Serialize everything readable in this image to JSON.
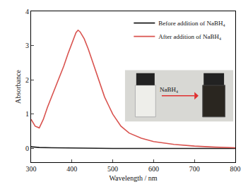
{
  "chart_data": {
    "type": "line",
    "x_label": "Wavelength / nm",
    "y_label": "Absorbance",
    "xlim": [
      300,
      800
    ],
    "xticks": [
      300,
      400,
      500,
      600,
      700,
      800
    ],
    "ylim": [
      -0.4,
      4
    ],
    "yticks": [
      0,
      1,
      2,
      3,
      4
    ],
    "grid": false,
    "legend": "upper right",
    "annotations": [
      {
        "text": "NaBH₄"
      }
    ],
    "series": [
      {
        "name": "Before addition of NaBH₄",
        "color": "#1a1a1a",
        "x": [
          300,
          320,
          350,
          400,
          450,
          500,
          550,
          600,
          650,
          700,
          750,
          800
        ],
        "values": [
          0.05,
          0.03,
          0.02,
          0.01,
          0.01,
          0.0,
          0.0,
          0.0,
          0.0,
          0.0,
          0.0,
          0.0
        ]
      },
      {
        "name": "After addition of NaBH₄",
        "color": "#d9534f",
        "x": [
          300,
          310,
          320,
          330,
          340,
          350,
          360,
          370,
          380,
          390,
          400,
          410,
          415,
          420,
          430,
          440,
          450,
          460,
          470,
          480,
          490,
          500,
          520,
          540,
          570,
          600,
          650,
          700,
          750,
          800
        ],
        "values": [
          0.85,
          0.65,
          0.6,
          0.85,
          1.2,
          1.5,
          1.8,
          2.1,
          2.4,
          2.75,
          3.05,
          3.38,
          3.45,
          3.4,
          3.2,
          2.9,
          2.55,
          2.2,
          1.85,
          1.5,
          1.25,
          1.0,
          0.65,
          0.45,
          0.3,
          0.2,
          0.12,
          0.07,
          0.04,
          0.02
        ]
      }
    ]
  }
}
